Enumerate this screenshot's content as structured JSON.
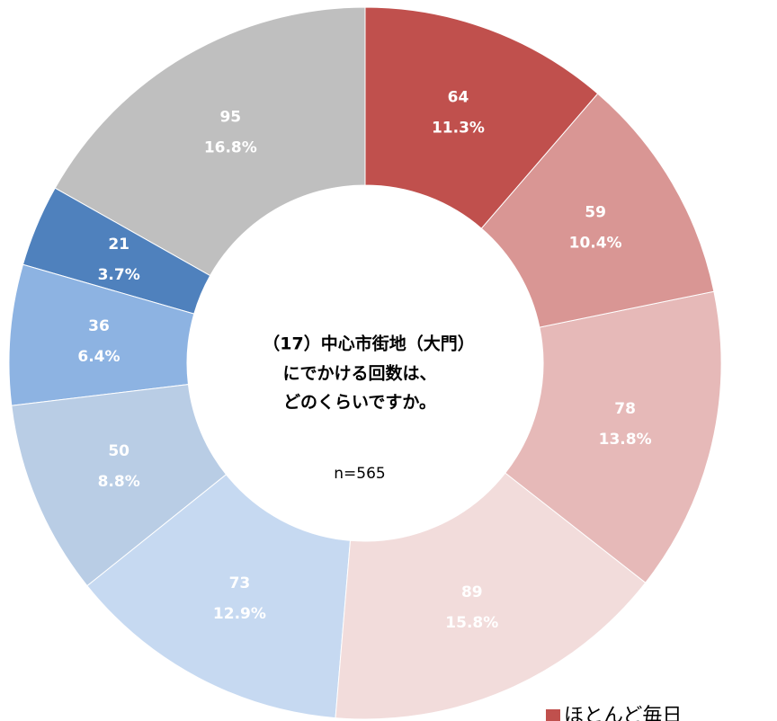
{
  "chart_data": {
    "type": "donut",
    "title": [
      "（17）中心市街地（大門）",
      "にでかける回数は、",
      "どのくらいですか。"
    ],
    "subtitle": "n=565",
    "categories": [
      "ほとんど毎日",
      null,
      null,
      null,
      null,
      null,
      null,
      null,
      null
    ],
    "values": [
      64,
      59,
      78,
      89,
      73,
      50,
      36,
      21,
      95
    ],
    "percent_labels": [
      "11.3%",
      "10.4%",
      "13.8%",
      "15.8%",
      "12.9%",
      "8.8%",
      "6.4%",
      "3.7%",
      "16.8%"
    ],
    "colors": [
      "#c0504d",
      "#d99694",
      "#e6b9b8",
      "#f2dcdb",
      "#c6d9f1",
      "#b9cde5",
      "#8db3e2",
      "#4f81bd",
      "#bfbfbf"
    ]
  }
}
